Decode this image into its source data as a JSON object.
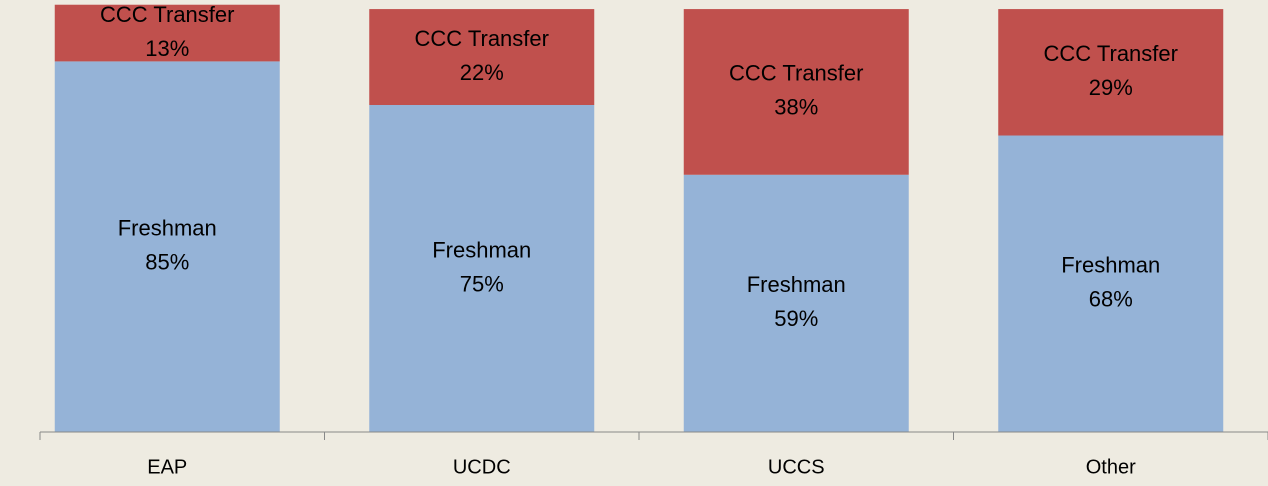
{
  "chart_data": {
    "type": "stacked_bar",
    "categories": [
      "EAP",
      "UCDC",
      "UCCS",
      "Other"
    ],
    "series": [
      {
        "name": "Freshman",
        "color": "#95b3d7",
        "values": [
          85,
          75,
          59,
          68
        ],
        "value_labels": [
          "85%",
          "75%",
          "59%",
          "68%"
        ]
      },
      {
        "name": "CCC Transfer",
        "color": "#c0504d",
        "values": [
          13,
          22,
          38,
          29
        ],
        "value_labels": [
          "13%",
          "22%",
          "38%",
          "29%"
        ]
      }
    ],
    "ylim": [
      0,
      100
    ]
  }
}
